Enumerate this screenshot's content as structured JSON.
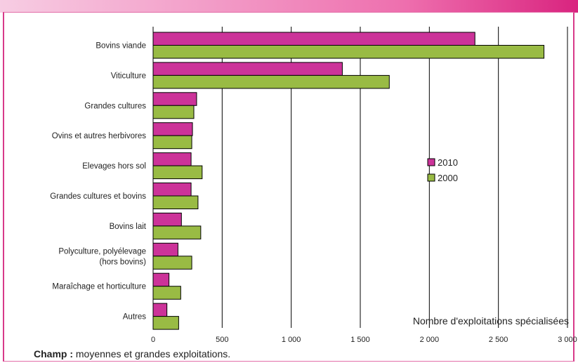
{
  "chart_data": {
    "type": "bar",
    "orientation": "horizontal",
    "categories": [
      [
        "Bovins viande"
      ],
      [
        "Viticulture"
      ],
      [
        "Grandes cultures"
      ],
      [
        "Ovins et autres herbivores"
      ],
      [
        "Elevages hors sol"
      ],
      [
        "Grandes cultures et bovins"
      ],
      [
        "Bovins lait"
      ],
      [
        "Polyculture, polyélevage",
        "(hors bovins)"
      ],
      [
        "Maraîchage et horticulture"
      ],
      [
        "Autres"
      ]
    ],
    "series": [
      {
        "name": "2010",
        "color": "#cc3399",
        "values": [
          2330,
          1370,
          315,
          285,
          275,
          275,
          205,
          180,
          115,
          100
        ]
      },
      {
        "name": "2000",
        "color": "#99bb44",
        "values": [
          2830,
          1710,
          295,
          280,
          355,
          325,
          345,
          280,
          200,
          185
        ]
      }
    ],
    "xlim": [
      0,
      3000
    ],
    "xticks": [
      0,
      500,
      1000,
      1500,
      2000,
      2500,
      3000
    ],
    "xtick_labels": [
      "0",
      "500",
      "1 000",
      "1 500",
      "2 000",
      "2 500",
      "3 000"
    ],
    "xlabel": "Nombre d'exploitations spécialisées",
    "grid": true,
    "legend_position": "right"
  },
  "note": {
    "label": "Champ :",
    "text": " moyennes et grandes exploitations."
  }
}
